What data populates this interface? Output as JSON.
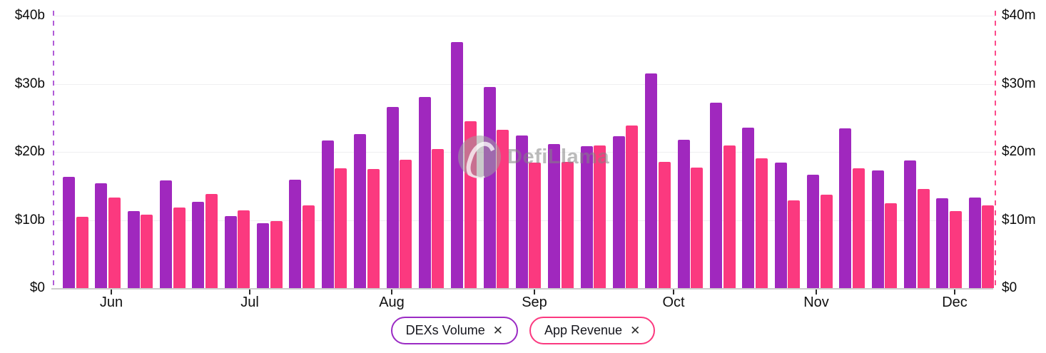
{
  "chart_data": {
    "type": "bar",
    "granularity": "weekly",
    "x_tick_labels": [
      "Jun",
      "Jul",
      "Aug",
      "Sep",
      "Oct",
      "Nov",
      "Dec"
    ],
    "left_axis": {
      "tick_labels": [
        "$0",
        "$10b",
        "$20b",
        "$30b",
        "$40b"
      ],
      "range": [
        0,
        40
      ],
      "unit": "USD billions"
    },
    "right_axis": {
      "tick_labels": [
        "$0",
        "$10m",
        "$20m",
        "$30m",
        "$40m"
      ],
      "range": [
        0,
        40
      ],
      "unit": "USD millions"
    },
    "series": [
      {
        "name": "DEXs Volume",
        "axis": "left",
        "unit": "$b",
        "color": "#a028be",
        "values": [
          16.3,
          15.4,
          11.3,
          15.8,
          12.7,
          10.6,
          9.5,
          15.9,
          21.7,
          22.6,
          26.6,
          28.1,
          36.1,
          29.5,
          22.4,
          21.2,
          20.8,
          22.3,
          31.5,
          21.8,
          27.2,
          23.6,
          18.4,
          16.7,
          23.5,
          17.3,
          18.7,
          13.2,
          13.3
        ]
      },
      {
        "name": "App Revenue",
        "axis": "right",
        "unit": "$m",
        "color": "#fb397f",
        "values": [
          10.5,
          13.3,
          10.8,
          11.8,
          13.8,
          11.4,
          9.8,
          12.1,
          17.6,
          17.5,
          18.8,
          20.4,
          24.5,
          23.2,
          18.4,
          18.5,
          20.9,
          23.9,
          18.5,
          17.7,
          20.9,
          19.1,
          12.9,
          13.7,
          17.6,
          12.5,
          14.6,
          11.3,
          12.1
        ]
      }
    ],
    "grid": "horizontal",
    "legend_position": "bottom"
  },
  "legend": {
    "items": [
      {
        "label": "DEXs Volume",
        "close_icon": "✕",
        "border_color": "#9b2bc4"
      },
      {
        "label": "App Revenue",
        "close_icon": "✕",
        "border_color": "#fb397f"
      }
    ]
  },
  "watermark": {
    "text": "DefiLlama"
  },
  "colors": {
    "background": "#ffffff",
    "gridline": "#efeff1",
    "axis_line": "#cccccc",
    "text": "#111111",
    "left_guide_line": "#a33fd1",
    "right_guide_line": "#fb397f"
  }
}
